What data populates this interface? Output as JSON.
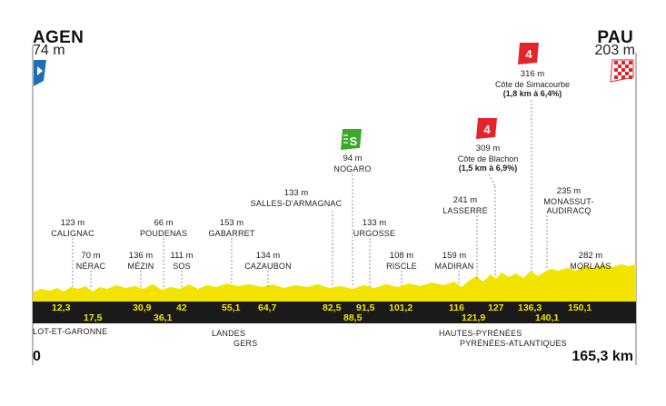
{
  "start": {
    "name": "AGEN",
    "altitude": "74 m"
  },
  "finish": {
    "name": "PAU",
    "altitude": "203 m"
  },
  "distance": {
    "start": "0",
    "end": "165,3 km"
  },
  "regions": [
    "LOT-ET-GARONNE",
    "LANDES",
    "GERS",
    "HAUTES-PYRÉNÉES",
    "PYRÉNÉES-ATLANTIQUES"
  ],
  "waypoints": [
    {
      "alt": "123 m",
      "name": "CALIGNAC",
      "km": "12,3"
    },
    {
      "alt": "70 m",
      "name": "NÉRAC",
      "km": "17,5"
    },
    {
      "alt": "136 m",
      "name": "MÉZIN",
      "km": "30,9"
    },
    {
      "alt": "66 m",
      "name": "POUDENAS",
      "km": "36,1"
    },
    {
      "alt": "111 m",
      "name": "SOS",
      "km": "42"
    },
    {
      "alt": "153 m",
      "name": "GABARRET",
      "km": "55,1"
    },
    {
      "alt": "134 m",
      "name": "CAZAUBON",
      "km": "64,7"
    },
    {
      "alt": "133 m",
      "name": "SALLES-D'ARMAGNAC",
      "km": "82,5"
    },
    {
      "alt": "94 m",
      "name": "NOGARO",
      "km": "88,5",
      "badge": "S"
    },
    {
      "alt": "133 m",
      "name": "URGOSSE",
      "km": "91,5"
    },
    {
      "alt": "108 m",
      "name": "RISCLE",
      "km": "101,2"
    },
    {
      "alt": "159 m",
      "name": "MADIRAN",
      "km": "116"
    },
    {
      "alt": "241 m",
      "name": "LASSERRE",
      "km": "121,9"
    },
    {
      "alt": "309 m",
      "name": "Côte de Blachon",
      "detail": "(1,5 km à 6,9%)",
      "km": "127",
      "badge": "4"
    },
    {
      "alt": "316 m",
      "name": "Côte de Simacourbe",
      "detail": "(1,8 km à 6,4%)",
      "km": "136,3",
      "badge": "4"
    },
    {
      "alt": "235 m",
      "name": "MONASSUT-AUDIRACQ",
      "km": "140,1"
    },
    {
      "alt": "282 m",
      "name": "MORLAÀS",
      "km": "150,1"
    }
  ],
  "colors": {
    "profile": "#f2e400",
    "band": "#1a1a1a",
    "sprint": "#3aa82b",
    "climb": "#e3242b",
    "start_flag": "#1f6fb5",
    "finish_flag": "#e3242b"
  },
  "icons": [
    "start-flag-icon",
    "finish-flag-icon",
    "sprint-icon",
    "climb-category-icon"
  ]
}
